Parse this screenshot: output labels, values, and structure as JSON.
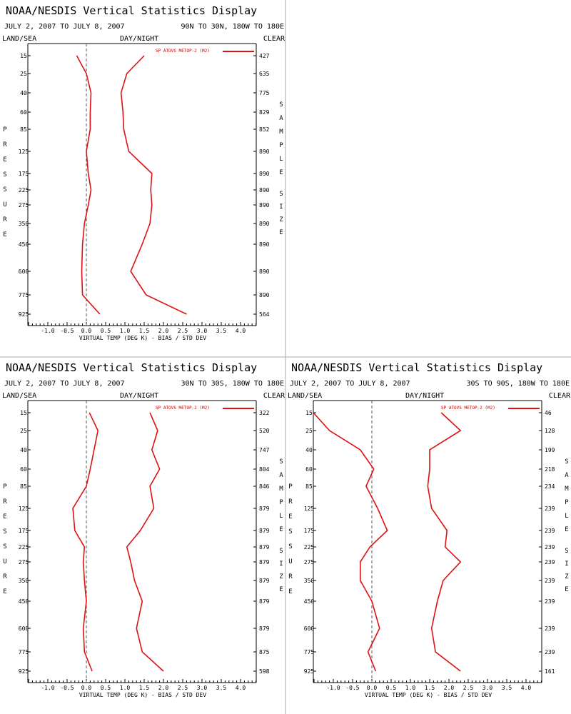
{
  "window": {
    "title": "NOAA/NESDIS Vertical Statistics Display"
  },
  "colors": {
    "series": "#dd1111",
    "zero_line": "#555555",
    "divider": "#aaaaaa"
  },
  "common": {
    "land_sea": "LAND/SEA",
    "day_night": "DAY/NIGHT",
    "clear": "CLEAR",
    "xlabel": "VIRTUAL TEMP (DEG K) - BIAS / STD DEV",
    "legend": "SP ATOVS METOP-2 (M2)",
    "pressure_letters": [
      "P",
      "R",
      "E",
      "S",
      "S",
      "U",
      "R",
      "E"
    ],
    "sample_letters": [
      "S",
      "A",
      "M",
      "P",
      "L",
      "E"
    ],
    "size_letters": [
      "S",
      "I",
      "Z",
      "E"
    ],
    "xticks": [
      "-1.0",
      "-0.5",
      "0.0",
      "0.5",
      "1.0",
      "1.5",
      "2.0",
      "2.5",
      "3.0",
      "3.5",
      "4.0"
    ],
    "pressure_levels": [
      "15",
      "25",
      "40",
      "60",
      "85",
      "125",
      "175",
      "225",
      "275",
      "350",
      "450",
      "600",
      "775",
      "925"
    ]
  },
  "chart_data": [
    {
      "type": "line",
      "title": "NOAA/NESDIS Vertical Statistics Display",
      "date_range": "JULY 2, 2007 TO JULY 8, 2007",
      "region": "90N TO 30N, 180W TO 180E",
      "xlabel": "VIRTUAL TEMP (DEG K) - BIAS / STD DEV",
      "xlim": [
        -1.5,
        4.5
      ],
      "y_levels": [
        15,
        25,
        40,
        60,
        85,
        125,
        175,
        225,
        275,
        350,
        450,
        600,
        775,
        925
      ],
      "sample_size": [
        "427",
        "635",
        "775",
        "829",
        "852",
        "890",
        "890",
        "890",
        "890",
        "890",
        "890",
        "890",
        "890",
        "564"
      ],
      "series": [
        {
          "name": "SP ATOVS METOP-2 (M2)",
          "label": "bias",
          "values": [
            -0.25,
            0.0,
            0.12,
            0.1,
            0.1,
            0.0,
            0.05,
            0.12,
            0.05,
            -0.05,
            -0.1,
            -0.12,
            -0.1,
            0.35
          ]
        },
        {
          "label": "std dev",
          "values": [
            1.5,
            1.05,
            0.9,
            0.95,
            0.97,
            1.1,
            1.7,
            1.67,
            1.7,
            1.65,
            1.45,
            1.15,
            1.55,
            2.6
          ]
        }
      ]
    },
    {
      "type": "line",
      "title": "NOAA/NESDIS Vertical Statistics Display",
      "date_range": "JULY 2, 2007 TO JULY 8, 2007",
      "region": "30N TO 30S, 180W TO 180E",
      "xlabel": "VIRTUAL TEMP (DEG K) - BIAS / STD DEV",
      "xlim": [
        -1.5,
        4.5
      ],
      "y_levels": [
        15,
        25,
        40,
        60,
        85,
        125,
        175,
        225,
        275,
        350,
        450,
        600,
        775,
        925
      ],
      "sample_size": [
        "322",
        "520",
        "747",
        "804",
        "846",
        "879",
        "879",
        "879",
        "879",
        "879",
        "879",
        "879",
        "875",
        "598"
      ],
      "series": [
        {
          "name": "SP ATOVS METOP-2 (M2)",
          "label": "bias",
          "values": [
            0.08,
            0.3,
            0.2,
            0.1,
            0.0,
            -0.35,
            -0.3,
            -0.05,
            -0.08,
            -0.05,
            0.0,
            -0.08,
            -0.05,
            0.15
          ]
        },
        {
          "label": "std dev",
          "values": [
            1.65,
            1.85,
            1.7,
            1.9,
            1.65,
            1.75,
            1.4,
            1.05,
            1.15,
            1.25,
            1.45,
            1.3,
            1.45,
            2.0
          ]
        }
      ]
    },
    {
      "type": "line",
      "title": "NOAA/NESDIS Vertical Statistics Display",
      "date_range": "JULY 2, 2007 TO JULY 8, 2007",
      "region": "30S TO 90S, 180W TO 180E",
      "xlabel": "VIRTUAL TEMP (DEG K) - BIAS / STD DEV",
      "xlim": [
        -1.5,
        4.5
      ],
      "y_levels": [
        15,
        25,
        40,
        60,
        85,
        125,
        175,
        225,
        275,
        350,
        450,
        600,
        775,
        925
      ],
      "sample_size": [
        "46",
        "128",
        "199",
        "218",
        "234",
        "239",
        "239",
        "239",
        "239",
        "239",
        "239",
        "239",
        "239",
        "161"
      ],
      "series": [
        {
          "name": "SP ATOVS METOP-2 (M2)",
          "label": "bias",
          "values": [
            -1.6,
            -1.1,
            -0.3,
            0.05,
            -0.15,
            0.15,
            0.4,
            -0.05,
            -0.3,
            -0.3,
            0.0,
            0.2,
            -0.1,
            0.1
          ]
        },
        {
          "label": "std dev",
          "values": [
            1.8,
            2.3,
            1.5,
            1.5,
            1.45,
            1.55,
            1.95,
            1.9,
            2.3,
            1.85,
            1.7,
            1.55,
            1.65,
            2.3
          ]
        }
      ]
    }
  ]
}
